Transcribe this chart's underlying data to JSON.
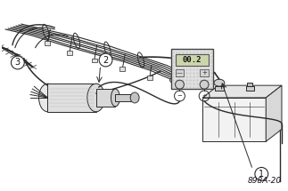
{
  "bg_color": "#ffffff",
  "fig_width": 3.23,
  "fig_height": 2.15,
  "dpi": 100,
  "label1": "1",
  "label2": "2",
  "label3": "3",
  "part_number": "898A-20",
  "meter_display": "00.2",
  "line_color": "#2a2a2a",
  "fill_light": "#eeeeee",
  "fill_mid": "#dddddd",
  "fill_dark": "#cccccc"
}
